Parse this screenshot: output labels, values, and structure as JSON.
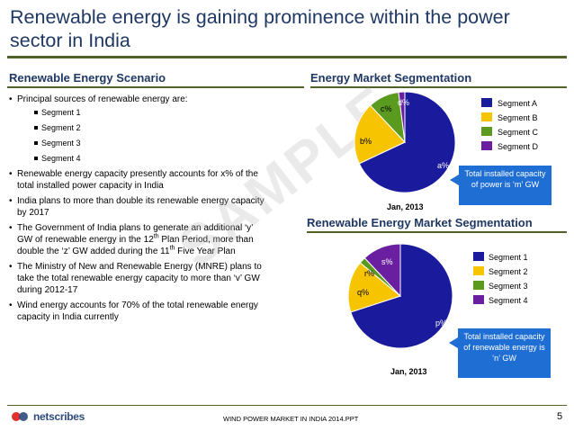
{
  "slide": {
    "title": "Renewable energy is gaining prominence within the power sector in India"
  },
  "left_panel": {
    "heading": "Renewable Energy Scenario",
    "bullet1": "Principal sources of renewable energy are:",
    "segments": [
      "Segment 1",
      "Segment 2",
      "Segment 3",
      "Segment 4"
    ],
    "bullet2": "Renewable energy capacity presently accounts for x% of the total installed power capacity in India",
    "bullet3": "India plans to more than double its renewable energy capacity by 2017",
    "bullet4_a": "The Government of India plans to generate an additional ‘y’ GW of renewable energy in the 12",
    "bullet4_sup1": "th",
    "bullet4_b": " Plan Period, more than double the ‘z’ GW added during the 11",
    "bullet4_sup2": "th",
    "bullet4_c": " Five Year Plan",
    "bullet5": "The Ministry of New and Renewable Energy (MNRE) plans to take the total renewable energy capacity to more than ‘v’ GW during 2012-17",
    "bullet6": "Wind energy accounts for 70% of the total renewable energy capacity in India currently"
  },
  "chart1": {
    "heading": "Energy Market Segmentation",
    "date": "Jan, 2013",
    "callout": "Total installed capacity of power is ‘m’ GW",
    "legend": [
      "Segment A",
      "Segment B",
      "Segment C",
      "Segment D"
    ],
    "slice_labels": [
      "a%",
      "b%",
      "c%",
      "d%"
    ]
  },
  "chart2": {
    "heading": "Renewable Energy Market Segmentation",
    "date": "Jan, 2013",
    "callout": "Total installed capacity of renewable energy is ‘n’ GW",
    "legend": [
      "Segment 1",
      "Segment 2",
      "Segment 3",
      "Segment 4"
    ],
    "slice_labels": [
      "p%",
      "q%",
      "r%",
      "s%"
    ]
  },
  "chart_data": [
    {
      "type": "pie",
      "categories": [
        "Segment A",
        "Segment B",
        "Segment C",
        "Segment D"
      ],
      "values": [
        68,
        20,
        10,
        2
      ],
      "colors": [
        "#1a1a9c",
        "#f6c400",
        "#5a9a1e",
        "#6a1fa0"
      ]
    },
    {
      "type": "pie",
      "categories": [
        "Segment 1",
        "Segment 2",
        "Segment 3",
        "Segment 4"
      ],
      "values": [
        70,
        16,
        2,
        12
      ],
      "colors": [
        "#1a1a9c",
        "#f6c400",
        "#5a9a1e",
        "#6a1fa0"
      ]
    }
  ],
  "watermark": "SAMPLE",
  "footer": {
    "logo_text": "netscribes",
    "title": "WIND POWER MARKET IN INDIA 2014.PPT",
    "page": "5"
  }
}
